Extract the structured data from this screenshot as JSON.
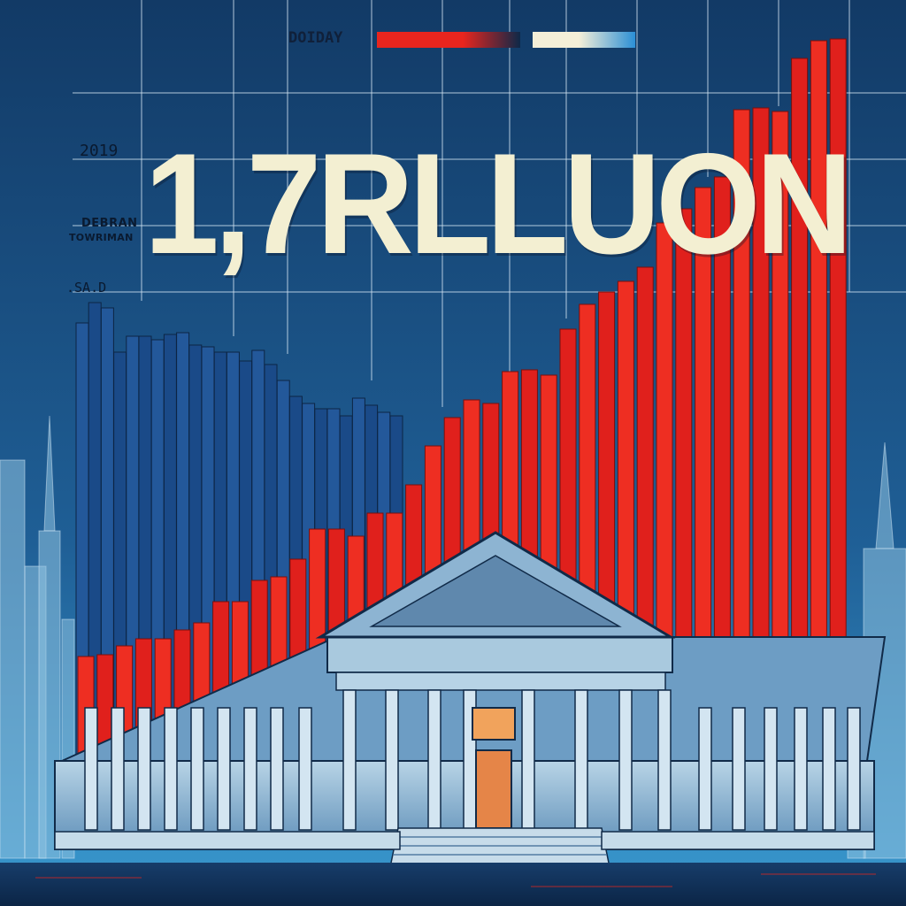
{
  "poster": {
    "legend_label": "DOIDAY",
    "headline": "1,7RLLUON",
    "label_year": "2019",
    "label_a": "DEBRAN",
    "label_b": "TOWRIMAN",
    "label_c": ".SA.D"
  },
  "colors": {
    "sky_top": "#123a66",
    "sky_bottom": "#2f8dc4",
    "bar_blue": "#1d4f8e",
    "bar_red": "#e8251e",
    "building": "#9cc1da",
    "headline": "#f3efd2",
    "ground": "#0b2a52"
  },
  "icons": [
    "building-icon",
    "skyscraper-icon"
  ]
}
